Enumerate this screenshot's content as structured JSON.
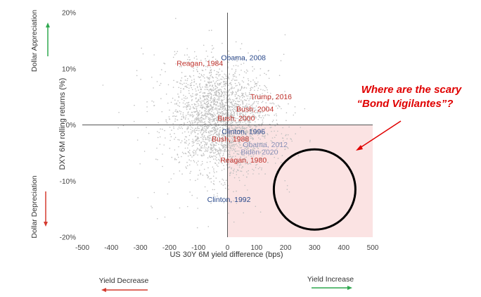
{
  "chart_data": {
    "type": "scatter",
    "xlabel": "US 30Y 6M yield difference (bps)",
    "ylabel": "DXY 6M rolling returns (%)",
    "xlim": [
      -500,
      500
    ],
    "ylim": [
      -20,
      20
    ],
    "x_ticks": [
      "-500",
      "-400",
      "-300",
      "-200",
      "-100",
      "0",
      "100",
      "200",
      "300",
      "400",
      "500"
    ],
    "y_ticks": [
      "20%",
      "10%",
      "0%",
      "-10%",
      "-20%"
    ],
    "grid": false,
    "point_color": "#c0c0c0",
    "labeled_points": [
      {
        "label": "Obama, 2008",
        "x": 55,
        "y": 12,
        "color": "#2b4a8c"
      },
      {
        "label": "Reagan, 1984",
        "x": -95,
        "y": 11,
        "color": "#c0312b"
      },
      {
        "label": "Trump, 2016",
        "x": 150,
        "y": 5,
        "color": "#c0312b"
      },
      {
        "label": "Bush, 2004",
        "x": 95,
        "y": 2.8,
        "color": "#c0312b"
      },
      {
        "label": "Bush, 2000",
        "x": 30,
        "y": 1.2,
        "color": "#c0312b"
      },
      {
        "label": "Clinton, 1996",
        "x": 55,
        "y": -1.2,
        "color": "#2b4a8c"
      },
      {
        "label": "Bush, 1988",
        "x": 10,
        "y": -2.5,
        "color": "#c0312b"
      },
      {
        "label": "Obama, 2012",
        "x": 130,
        "y": -3.5,
        "color": "#8a90b8"
      },
      {
        "label": "Biden 2020",
        "x": 110,
        "y": -4.8,
        "color": "#8a90b8"
      },
      {
        "label": "Reagan, 1980",
        "x": 55,
        "y": -6.3,
        "color": "#c0312b"
      },
      {
        "label": "Clinton, 1992",
        "x": 5,
        "y": -13.3,
        "color": "#2b4a8c"
      }
    ],
    "highlight_region": {
      "x_range": [
        0,
        500
      ],
      "y_range": [
        -20,
        0
      ],
      "color": "#fbe3e3"
    },
    "ellipse_center": [
      300,
      -11.5
    ],
    "annotation": "Where are the scary “Bond Vigilantes”?"
  },
  "side_labels": {
    "appreciation": "Dollar Appreciation",
    "depreciation": "Dollar Depreciation",
    "yield_decrease": "Yield Decrease",
    "yield_increase": "Yield Increase"
  },
  "colors": {
    "up_arrow": "#2fa84f",
    "down_arrow": "#d43a2f",
    "callout": "#e00000"
  },
  "annotation_lines": [
    "Where are the scary",
    "“Bond Vigilantes”?"
  ]
}
